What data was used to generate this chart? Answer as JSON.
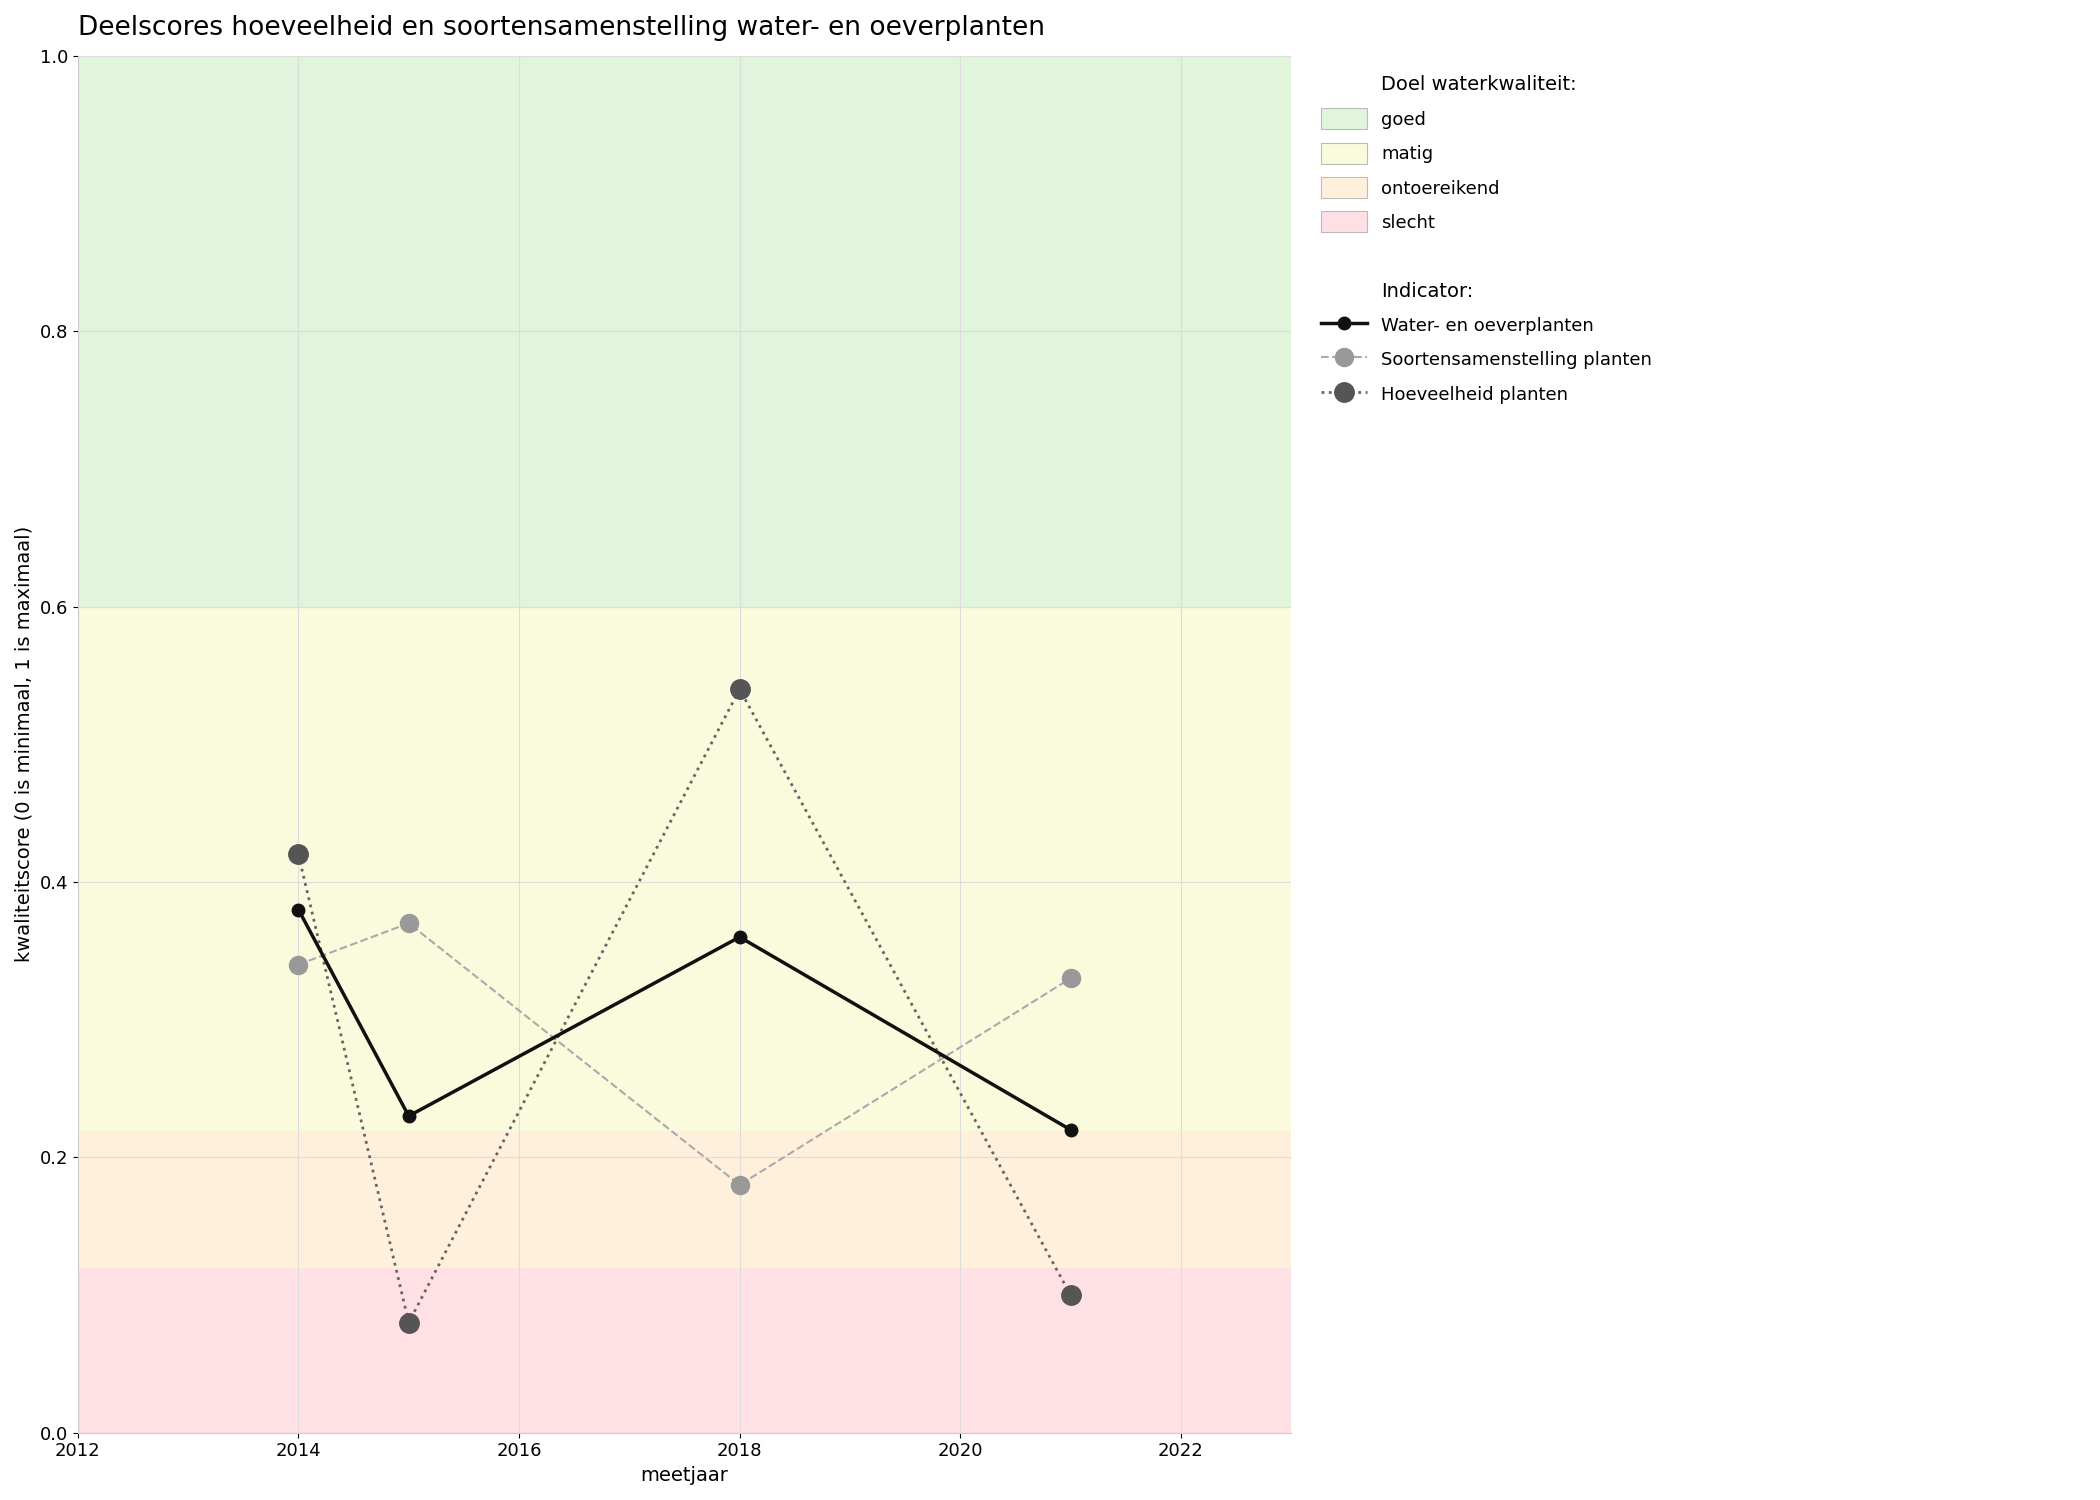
{
  "title": "Deelscores hoeveelheid en soortensamenstelling water- en oeverplanten",
  "xlabel": "meetjaar",
  "ylabel": "kwaliteitscore (0 is minimaal, 1 is maximaal)",
  "xlim": [
    2012,
    2023
  ],
  "ylim": [
    0.0,
    1.0
  ],
  "xticks": [
    2012,
    2014,
    2016,
    2018,
    2020,
    2022
  ],
  "yticks": [
    0.0,
    0.2,
    0.4,
    0.6,
    0.8,
    1.0
  ],
  "bg_bands": [
    {
      "ymin": 0.0,
      "ymax": 0.12,
      "color": "#FFE0E5",
      "label": "slecht"
    },
    {
      "ymin": 0.12,
      "ymax": 0.22,
      "color": "#FFF0DC",
      "label": "ontoereikend"
    },
    {
      "ymin": 0.22,
      "ymax": 0.6,
      "color": "#FAFADC",
      "label": "matig"
    },
    {
      "ymin": 0.6,
      "ymax": 1.0,
      "color": "#E0F5DC",
      "label": "goed"
    }
  ],
  "series": [
    {
      "name": "Water- en oeverplanten",
      "x": [
        2014,
        2015,
        2018,
        2021
      ],
      "y": [
        0.38,
        0.23,
        0.36,
        0.22
      ],
      "color": "#111111",
      "linestyle": "solid",
      "linewidth": 2.5,
      "marker": "o",
      "markersize": 9,
      "markerfacecolor": "#111111",
      "markeredgecolor": "#111111",
      "alpha": 1.0,
      "zorder": 5
    },
    {
      "name": "Soortensamenstelling planten",
      "x": [
        2014,
        2015,
        2018,
        2021
      ],
      "y": [
        0.34,
        0.37,
        0.18,
        0.33
      ],
      "color": "#aaaaaa",
      "linestyle": "dashed",
      "linewidth": 1.5,
      "marker": "o",
      "markersize": 13,
      "markerfacecolor": "#999999",
      "markeredgecolor": "#999999",
      "alpha": 1.0,
      "zorder": 4
    },
    {
      "name": "Hoeveelheid planten",
      "x": [
        2014,
        2015,
        2018,
        2021
      ],
      "y": [
        0.42,
        0.08,
        0.54,
        0.1
      ],
      "color": "#666666",
      "linestyle": "dotted",
      "linewidth": 2.0,
      "marker": "o",
      "markersize": 14,
      "markerfacecolor": "#555555",
      "markeredgecolor": "#555555",
      "alpha": 1.0,
      "zorder": 4
    }
  ],
  "legend_band_colors": [
    {
      "color": "#E0F5DC",
      "label": "goed"
    },
    {
      "color": "#FAFADC",
      "label": "matig"
    },
    {
      "color": "#FFF0DC",
      "label": "ontoereikend"
    },
    {
      "color": "#FFE0E5",
      "label": "slecht"
    }
  ],
  "grid_color": "#dddddd",
  "background_color": "#ffffff",
  "title_fontsize": 19,
  "axis_label_fontsize": 14,
  "tick_fontsize": 13,
  "legend_fontsize": 13
}
